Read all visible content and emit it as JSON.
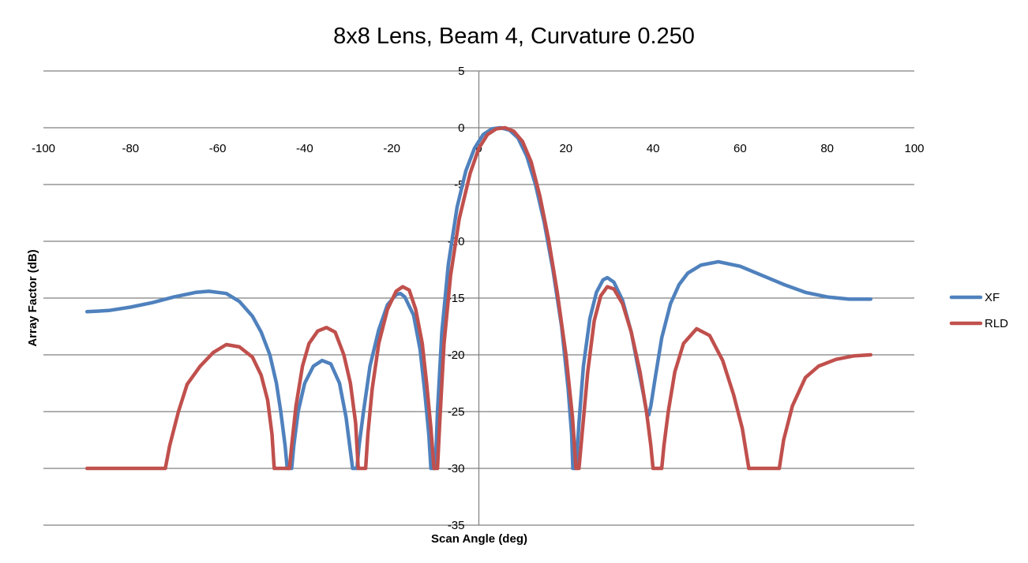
{
  "chart_data": {
    "type": "line",
    "title": "8x8 Lens, Beam 4, Curvature 0.250",
    "xlabel": "Scan Angle (deg)",
    "ylabel": "Array Factor (dB)",
    "xlim": [
      -100,
      100
    ],
    "ylim": [
      -35,
      5
    ],
    "x_ticks": [
      -100,
      -80,
      -60,
      -40,
      -20,
      0,
      20,
      40,
      60,
      80,
      100
    ],
    "y_ticks": [
      5,
      0,
      -5,
      -10,
      -15,
      -20,
      -25,
      -30,
      -35
    ],
    "grid": "horizontal",
    "legend": "right",
    "series": [
      {
        "name": "XF",
        "color": "#4f81bd",
        "points": [
          [
            -90,
            -16.2
          ],
          [
            -85,
            -16.1
          ],
          [
            -80,
            -15.8
          ],
          [
            -75,
            -15.4
          ],
          [
            -70,
            -14.9
          ],
          [
            -65,
            -14.5
          ],
          [
            -62,
            -14.4
          ],
          [
            -58,
            -14.6
          ],
          [
            -55,
            -15.3
          ],
          [
            -52,
            -16.6
          ],
          [
            -50,
            -18.0
          ],
          [
            -48,
            -20.0
          ],
          [
            -46.5,
            -22.5
          ],
          [
            -45.5,
            -25.0
          ],
          [
            -44.5,
            -28.0
          ],
          [
            -44,
            -30
          ],
          [
            -43,
            -30
          ],
          [
            -42.5,
            -28.0
          ],
          [
            -41.5,
            -25.0
          ],
          [
            -40,
            -22.5
          ],
          [
            -38,
            -21.0
          ],
          [
            -36,
            -20.5
          ],
          [
            -34,
            -20.8
          ],
          [
            -32,
            -22.5
          ],
          [
            -30.5,
            -25.5
          ],
          [
            -29.5,
            -28.5
          ],
          [
            -29,
            -30
          ],
          [
            -28,
            -30
          ],
          [
            -27.5,
            -28.0
          ],
          [
            -26.5,
            -25.0
          ],
          [
            -25,
            -21.0
          ],
          [
            -23,
            -17.8
          ],
          [
            -21,
            -15.6
          ],
          [
            -19,
            -14.7
          ],
          [
            -18,
            -14.6
          ],
          [
            -17,
            -14.9
          ],
          [
            -15,
            -16.5
          ],
          [
            -13.5,
            -19.5
          ],
          [
            -12.5,
            -23.0
          ],
          [
            -11.5,
            -27.0
          ],
          [
            -11,
            -30
          ],
          [
            -10,
            -30
          ],
          [
            -9.5,
            -25.0
          ],
          [
            -8.5,
            -18.0
          ],
          [
            -7,
            -12.0
          ],
          [
            -5,
            -7.0
          ],
          [
            -3,
            -3.8
          ],
          [
            -1,
            -1.8
          ],
          [
            1,
            -0.6
          ],
          [
            3,
            -0.1
          ],
          [
            5,
            0
          ],
          [
            7,
            -0.2
          ],
          [
            9,
            -0.9
          ],
          [
            11,
            -2.5
          ],
          [
            13,
            -5.0
          ],
          [
            15,
            -8.3
          ],
          [
            17,
            -12.5
          ],
          [
            19,
            -17.5
          ],
          [
            20.5,
            -23.0
          ],
          [
            21.3,
            -27.0
          ],
          [
            21.6,
            -30
          ],
          [
            22.3,
            -30
          ],
          [
            23,
            -26.0
          ],
          [
            24,
            -21.0
          ],
          [
            25.5,
            -16.8
          ],
          [
            27,
            -14.5
          ],
          [
            28.5,
            -13.4
          ],
          [
            29.5,
            -13.2
          ],
          [
            31,
            -13.6
          ],
          [
            33,
            -15.2
          ],
          [
            35,
            -18.0
          ],
          [
            36.5,
            -21.0
          ],
          [
            37.8,
            -23.5
          ],
          [
            38.5,
            -25.0
          ],
          [
            39,
            -25.3
          ],
          [
            39.5,
            -24.5
          ],
          [
            40.5,
            -22.0
          ],
          [
            42,
            -18.5
          ],
          [
            44,
            -15.5
          ],
          [
            46,
            -13.8
          ],
          [
            48,
            -12.8
          ],
          [
            51,
            -12.1
          ],
          [
            55,
            -11.8
          ],
          [
            60,
            -12.2
          ],
          [
            65,
            -13.0
          ],
          [
            70,
            -13.8
          ],
          [
            75,
            -14.5
          ],
          [
            80,
            -14.9
          ],
          [
            85,
            -15.1
          ],
          [
            90,
            -15.1
          ]
        ]
      },
      {
        "name": "RLD",
        "color": "#c0504d",
        "points": [
          [
            -90,
            -30
          ],
          [
            -72,
            -30
          ],
          [
            -71,
            -28.0
          ],
          [
            -69,
            -25.0
          ],
          [
            -67,
            -22.6
          ],
          [
            -64,
            -21.0
          ],
          [
            -61,
            -19.8
          ],
          [
            -58,
            -19.1
          ],
          [
            -55,
            -19.3
          ],
          [
            -52,
            -20.2
          ],
          [
            -50,
            -21.8
          ],
          [
            -48.5,
            -24.0
          ],
          [
            -47.5,
            -27.0
          ],
          [
            -47,
            -30
          ],
          [
            -43.5,
            -30
          ],
          [
            -43,
            -28.0
          ],
          [
            -42,
            -24.5
          ],
          [
            -40.5,
            -21.0
          ],
          [
            -39,
            -19.0
          ],
          [
            -37,
            -17.9
          ],
          [
            -35,
            -17.6
          ],
          [
            -33,
            -18.0
          ],
          [
            -31,
            -20.0
          ],
          [
            -29.5,
            -22.5
          ],
          [
            -28.3,
            -26.0
          ],
          [
            -27.7,
            -30
          ],
          [
            -26,
            -30
          ],
          [
            -25.5,
            -27.0
          ],
          [
            -24.5,
            -23.0
          ],
          [
            -23,
            -19.0
          ],
          [
            -21,
            -16.0
          ],
          [
            -19,
            -14.4
          ],
          [
            -17.5,
            -14.0
          ],
          [
            -16,
            -14.3
          ],
          [
            -14.5,
            -16.0
          ],
          [
            -13,
            -19.0
          ],
          [
            -12,
            -22.5
          ],
          [
            -11,
            -26.5
          ],
          [
            -10.3,
            -30
          ],
          [
            -9.5,
            -30
          ],
          [
            -9,
            -26.0
          ],
          [
            -8,
            -19.0
          ],
          [
            -6.5,
            -13.0
          ],
          [
            -4.5,
            -8.0
          ],
          [
            -2,
            -4.0
          ],
          [
            0,
            -1.8
          ],
          [
            2,
            -0.6
          ],
          [
            4,
            -0.1
          ],
          [
            6,
            0
          ],
          [
            8,
            -0.3
          ],
          [
            10,
            -1.2
          ],
          [
            12,
            -3.0
          ],
          [
            14,
            -6.0
          ],
          [
            16,
            -9.8
          ],
          [
            18,
            -14.5
          ],
          [
            20,
            -20.0
          ],
          [
            21.5,
            -25.5
          ],
          [
            22.3,
            -30
          ],
          [
            23,
            -30
          ],
          [
            23.7,
            -27.0
          ],
          [
            25,
            -21.5
          ],
          [
            26.5,
            -17.0
          ],
          [
            28,
            -14.8
          ],
          [
            29.5,
            -14.0
          ],
          [
            31,
            -14.2
          ],
          [
            33,
            -15.5
          ],
          [
            35,
            -18.0
          ],
          [
            37,
            -21.5
          ],
          [
            38.5,
            -25.0
          ],
          [
            39.5,
            -28.0
          ],
          [
            40,
            -30
          ],
          [
            42,
            -30
          ],
          [
            42.5,
            -28.0
          ],
          [
            43.5,
            -25.0
          ],
          [
            45,
            -21.5
          ],
          [
            47,
            -19.0
          ],
          [
            50,
            -17.7
          ],
          [
            53,
            -18.3
          ],
          [
            56,
            -20.5
          ],
          [
            58.5,
            -23.5
          ],
          [
            60.5,
            -26.5
          ],
          [
            62,
            -30
          ],
          [
            69,
            -30
          ],
          [
            70,
            -27.5
          ],
          [
            72,
            -24.5
          ],
          [
            75,
            -22.0
          ],
          [
            78,
            -21.0
          ],
          [
            82,
            -20.4
          ],
          [
            86,
            -20.1
          ],
          [
            90,
            -20.0
          ]
        ]
      }
    ]
  }
}
